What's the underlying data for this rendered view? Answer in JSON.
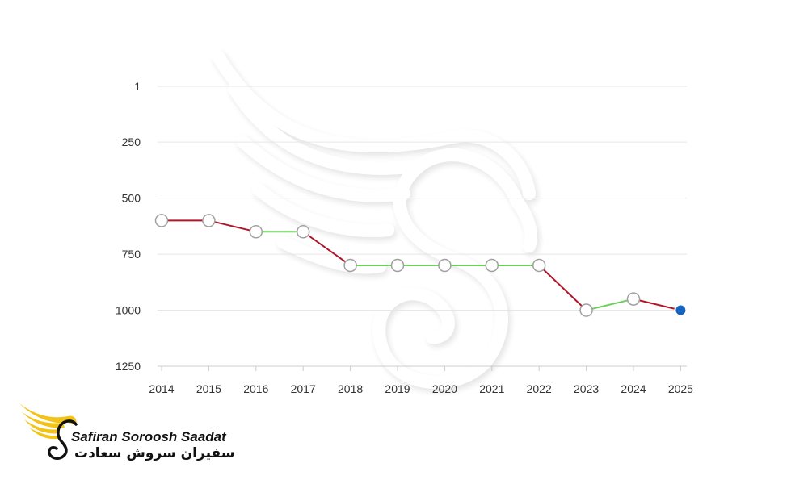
{
  "chart_data": {
    "type": "line",
    "x": [
      "2014",
      "2015",
      "2016",
      "2017",
      "2018",
      "2019",
      "2020",
      "2021",
      "2022",
      "2023",
      "2024",
      "2025"
    ],
    "values": [
      600,
      600,
      650,
      650,
      800,
      800,
      800,
      800,
      800,
      1000,
      950,
      1000
    ],
    "y_ticks": [
      1,
      250,
      500,
      750,
      1000,
      1250
    ],
    "y_axis_inverted": true,
    "ylim": [
      1,
      1250
    ],
    "grid": true,
    "colors": {
      "worse": "#b0162a",
      "better": "#6ccf5a",
      "marker_fill": "#ffffff",
      "marker_stroke": "#a0a0a0",
      "current_marker": "#1565c0",
      "grid": "#e6e6e6"
    }
  },
  "logo": {
    "text_en": "Safiran Soroosh Saadat",
    "text_fa": "سفیران سروش سعادت",
    "colors": {
      "wing": "#f2c318",
      "ink": "#111111"
    }
  }
}
